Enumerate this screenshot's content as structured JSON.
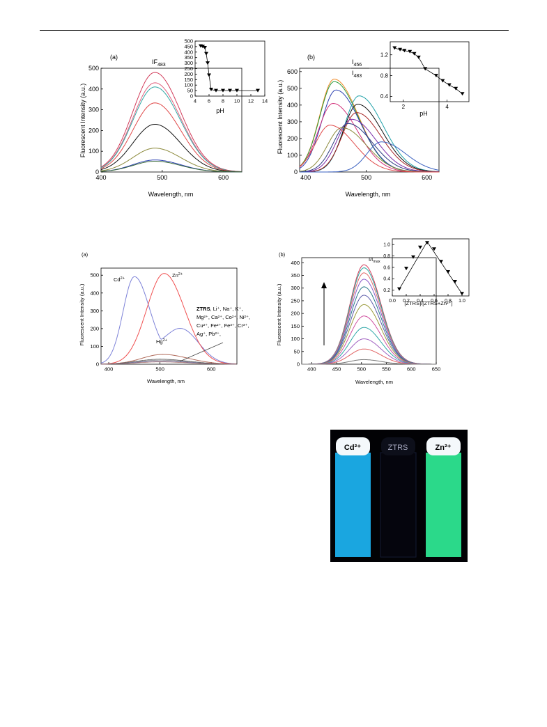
{
  "figure1": {
    "panel_a": {
      "label": "(a)",
      "xlabel": "Wavelength, nm",
      "ylabel": "Fluorescent Intensity (a.u.)",
      "xticks": [
        "400",
        "500",
        "600"
      ],
      "yticks": [
        "0",
        "100",
        "200",
        "300",
        "400",
        "500"
      ],
      "inset": {
        "label_main": "IF",
        "label_sub": "483",
        "xlabel": "pH",
        "xticks": [
          "4",
          "6",
          "8",
          "10",
          "12",
          "14"
        ],
        "yticks": [
          "0",
          "50",
          "100",
          "150",
          "200",
          "250",
          "300",
          "350",
          "400",
          "450",
          "500"
        ]
      }
    },
    "panel_b": {
      "label": "(b)",
      "xlabel": "Wavelength, nm",
      "ylabel": "Fluorescent Intensity (a.u.)",
      "xticks": [
        "400",
        "500",
        "600"
      ],
      "yticks": [
        "0",
        "100",
        "200",
        "300",
        "400",
        "500",
        "600"
      ],
      "inset": {
        "num_main": "I",
        "num_sub": "456",
        "den_main": "I",
        "den_sub": "483",
        "xlabel": "pH",
        "xticks": [
          "2",
          "4"
        ],
        "yticks": [
          "0.4",
          "0.8",
          "1.2"
        ]
      }
    }
  },
  "figure2": {
    "panel_a": {
      "label": "(a)",
      "xlabel": "Wavelength, nm",
      "ylabel": "Fluorescent Intensity (a.u.)",
      "xticks": [
        "400",
        "500",
        "600"
      ],
      "yticks": [
        "0",
        "100",
        "200",
        "300",
        "400",
        "500"
      ],
      "ann_cd": "Cd",
      "ann_cd_sup": "2+",
      "ann_zn": "Zn",
      "ann_zn_sup": "2+",
      "ann_hg": "Hg",
      "ann_hg_sup": "2+",
      "ann_list_bold": "ZTRS",
      "ann_list": [
        ", Li⁺, Na⁺, K⁺,",
        "Mg²⁺, Ca²⁺, Co²⁺, Ni²⁺,",
        "Cu²⁺, Fe²⁺, Fe³⁺, Cr³⁺,",
        "Ag⁺, Pb²⁺,"
      ]
    },
    "panel_b": {
      "label": "(b)",
      "xlabel": "Wavelength, nm",
      "ylabel": "Fluorescent Intensity (a.u.)",
      "xticks": [
        "400",
        "450",
        "500",
        "550",
        "600",
        "650"
      ],
      "yticks": [
        "0",
        "50",
        "100",
        "150",
        "200",
        "250",
        "300",
        "350",
        "400"
      ],
      "inset": {
        "ylabel": "I/I",
        "ylabel_sub": "max",
        "xlabel": "[ZTRS]/[ZTRS+Zn²⁺]",
        "xticks": [
          "0.0",
          "0.2",
          "0.4",
          "0.6",
          "0.8",
          "1.0"
        ],
        "yticks": [
          "0.2",
          "0.4",
          "0.6",
          "0.8",
          "1.0"
        ]
      }
    }
  },
  "photo": {
    "labels": {
      "cd": "Cd²⁺",
      "ztrs": "ZTRS",
      "zn": "Zn²⁺"
    },
    "colors": {
      "cd": "#1aa6e0",
      "ztrs": "#05050d",
      "zn": "#2bd98a"
    }
  },
  "chart_data": [
    {
      "id": "fig1a",
      "type": "line",
      "title": "",
      "xlabel": "Wavelength, nm",
      "ylabel": "Fluorescent Intensity (a.u.)",
      "xlim": [
        400,
        630
      ],
      "ylim": [
        0,
        500
      ],
      "series": [
        {
          "peak_nm": 488,
          "peak_value": 480,
          "color": "#d23c5a"
        },
        {
          "peak_nm": 488,
          "peak_value": 430,
          "color": "#e0607e"
        },
        {
          "peak_nm": 488,
          "peak_value": 410,
          "color": "#34a9a6"
        },
        {
          "peak_nm": 488,
          "peak_value": 333,
          "color": "#e04a4a"
        },
        {
          "peak_nm": 488,
          "peak_value": 230,
          "color": "#111111"
        },
        {
          "peak_nm": 488,
          "peak_value": 115,
          "color": "#8c8a3c"
        },
        {
          "peak_nm": 488,
          "peak_value": 58,
          "color": "#2a3fb0"
        },
        {
          "peak_nm": 488,
          "peak_value": 52,
          "color": "#3a6a3a"
        }
      ],
      "inset": {
        "type": "scatter",
        "xlabel": "pH",
        "xlim": [
          4,
          14
        ],
        "ylim": [
          0,
          500
        ],
        "x": [
          4.8,
          5.1,
          5.4,
          5.6,
          5.8,
          6.0,
          6.3,
          7.0,
          8.0,
          9.0,
          10.0,
          13.0
        ],
        "y": [
          455,
          450,
          440,
          385,
          300,
          190,
          60,
          50,
          50,
          50,
          50,
          50
        ]
      }
    },
    {
      "id": "fig1b",
      "type": "line",
      "title": "",
      "xlabel": "Wavelength, nm",
      "ylabel": "Fluorescent Intensity (a.u.)",
      "xlim": [
        390,
        620
      ],
      "ylim": [
        0,
        620
      ],
      "series": [
        {
          "peak_nm": 447,
          "peak_value": 555,
          "color": "#f08a28"
        },
        {
          "peak_nm": 447,
          "peak_value": 540,
          "color": "#2a9a3a"
        },
        {
          "peak_nm": 450,
          "peak_value": 490,
          "color": "#2a3fb0"
        },
        {
          "peak_nm": 445,
          "peak_value": 410,
          "color": "#d2307a"
        },
        {
          "peak_nm": 488,
          "peak_value": 455,
          "color": "#1ea0a8"
        },
        {
          "peak_nm": 486,
          "peak_value": 405,
          "color": "#111111"
        },
        {
          "peak_nm": 484,
          "peak_value": 355,
          "color": "#a82828"
        },
        {
          "peak_nm": 476,
          "peak_value": 315,
          "color": "#7a2aa8"
        },
        {
          "peak_nm": 470,
          "peak_value": 290,
          "color": "#2a3a80"
        },
        {
          "peak_nm": 460,
          "peak_value": 265,
          "color": "#8c8a3c"
        },
        {
          "peak_nm": 440,
          "peak_value": 280,
          "color": "#e04a4a"
        },
        {
          "peak_nm": 525,
          "peak_value": 180,
          "color": "#3a60c0"
        }
      ],
      "inset": {
        "type": "line",
        "xlabel": "pH",
        "xlim": [
          1.4,
          5.0
        ],
        "ylim": [
          0.3,
          1.45
        ],
        "x": [
          1.6,
          1.85,
          2.05,
          2.3,
          2.5,
          2.7,
          3.0,
          3.5,
          3.8,
          4.1,
          4.4,
          4.7
        ],
        "y": [
          1.33,
          1.3,
          1.28,
          1.26,
          1.22,
          1.15,
          0.93,
          0.8,
          0.7,
          0.62,
          0.55,
          0.45
        ]
      }
    },
    {
      "id": "fig2a",
      "type": "line",
      "title": "",
      "xlabel": "Wavelength, nm",
      "ylabel": "Fluorescent Intensity (a.u.)",
      "xlim": [
        385,
        650
      ],
      "ylim": [
        0,
        540
      ],
      "series": [
        {
          "name": "Cd²⁺",
          "peak_nm": 450,
          "peak_value": 490,
          "color": "#7d82d8"
        },
        {
          "name": "Zn²⁺",
          "peak_nm": 508,
          "peak_value": 510,
          "color": "#f05050"
        },
        {
          "name": "Hg²⁺",
          "peak_nm": 505,
          "peak_value": 55,
          "color": "#b06a5a"
        }
      ]
    },
    {
      "id": "fig2b",
      "type": "line",
      "title": "",
      "xlabel": "Wavelength, nm",
      "ylabel": "Fluorescent Intensity (a.u.)",
      "xlim": [
        380,
        650
      ],
      "ylim": [
        0,
        420
      ],
      "series": [
        {
          "peak_nm": 505,
          "peak_value": 392,
          "color": "#d23c5a"
        },
        {
          "peak_nm": 505,
          "peak_value": 380,
          "color": "#2aa8a0"
        },
        {
          "peak_nm": 505,
          "peak_value": 360,
          "color": "#e06a6a"
        },
        {
          "peak_nm": 505,
          "peak_value": 335,
          "color": "#8a5ac8"
        },
        {
          "peak_nm": 505,
          "peak_value": 305,
          "color": "#2a7a8a"
        },
        {
          "peak_nm": 505,
          "peak_value": 272,
          "color": "#5a5aa8"
        },
        {
          "peak_nm": 505,
          "peak_value": 235,
          "color": "#9a9a3a"
        },
        {
          "peak_nm": 505,
          "peak_value": 190,
          "color": "#d050a0"
        },
        {
          "peak_nm": 505,
          "peak_value": 145,
          "color": "#30a8a8"
        },
        {
          "peak_nm": 505,
          "peak_value": 100,
          "color": "#a060c0"
        },
        {
          "peak_nm": 505,
          "peak_value": 60,
          "color": "#e06060"
        },
        {
          "peak_nm": 505,
          "peak_value": 18,
          "color": "#777777"
        }
      ],
      "inset": {
        "type": "line",
        "xlabel": "[ZTRS]/[ZTRS+Zn²⁺]",
        "ylabel": "I/I_max",
        "xlim": [
          0,
          1.1
        ],
        "ylim": [
          0.1,
          1.1
        ],
        "x": [
          0.1,
          0.2,
          0.3,
          0.4,
          0.5,
          0.6,
          0.7,
          0.8,
          0.9,
          1.0
        ],
        "y": [
          0.22,
          0.58,
          0.78,
          0.95,
          1.03,
          0.92,
          0.7,
          0.52,
          0.35,
          0.14
        ]
      }
    }
  ]
}
